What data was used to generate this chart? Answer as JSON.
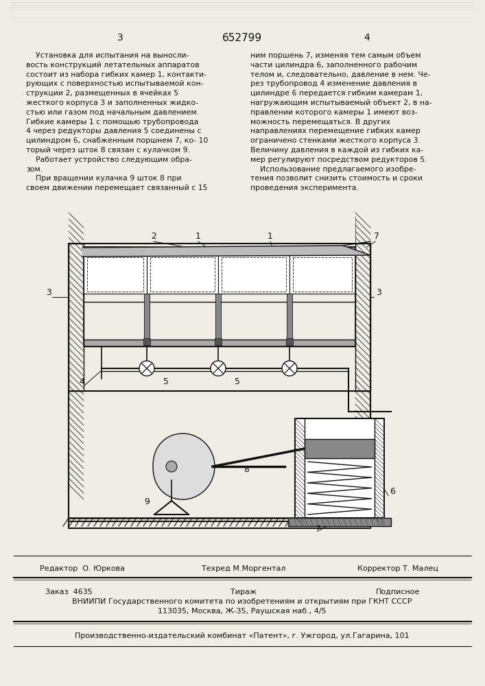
{
  "page_number_left": "3",
  "patent_number": "652799",
  "page_number_right": "4",
  "background_color": "#f0ede6",
  "text_color": "#111111",
  "left_column_text": [
    "    Установка для испытания на выносли-",
    "вость конструкций летательных аппаратов",
    "состоит из набора гибких камер 1, контакти-",
    "рующих с поверхностью испытываемой кон-",
    "струкции 2, размещенных в ячейках 5",
    "жесткого корпуса 3 и заполненных жидко-",
    "стью или газом под начальным давлением.",
    "Гибкие камеры 1 с помощью трубопровода",
    "4 через редукторы давления 5 соединены с",
    "цилиндром 6, снабженным поршнем 7, ко- 10",
    "торый через шток 8 связан с кулачком 9.",
    "    Работает устройство следующим обра-",
    "зом.",
    "    При вращении кулачка 9 шток 8 при",
    "своем движении перемещает связанный с 15"
  ],
  "right_column_text": [
    "ним поршень 7, изменяя тем самым объем",
    "части цилиндра 6, заполненного рабочим",
    "телом и, следовательно, давление в нем. Че-",
    "рез трубопровод 4 изменение давления в",
    "цилиндре 6 передается гибким камерам 1,",
    "нагружающим испытываемый объект 2, в на-",
    "правлении которого камеры 1 имеют воз-",
    "можность перемещаться. В других",
    "направлениях перемещение гибких камер",
    "ограничено стенками жесткого корпуса 3.",
    "Величину давления в каждой из гибких ка-",
    "мер регулируют посредством редукторов 5.",
    "    Использование предлагаемого изобре-",
    "тения позволит снизить стоимость и сроки",
    "проведения эксперимента."
  ],
  "editor_line1": "Редактор  О. Юркова",
  "editor_line2": "Техред М.Моргентал",
  "editor_line3": "Корректор Т. Малец",
  "order_col1": "Заказ  4635",
  "order_col2": "Тираж",
  "order_col3": "Подписное",
  "vniiipi_line1": "ВНИИПИ Государственного комитета по изобретениям и открытиям при ГКНТ СССР",
  "vniiipi_line2": "113035, Москва, Ж-35, Раушская наб., 4/5",
  "publisher_line": "Производственно-издательский комбинат «Патент», г. Ужгород, ул.Гагарина, 101"
}
